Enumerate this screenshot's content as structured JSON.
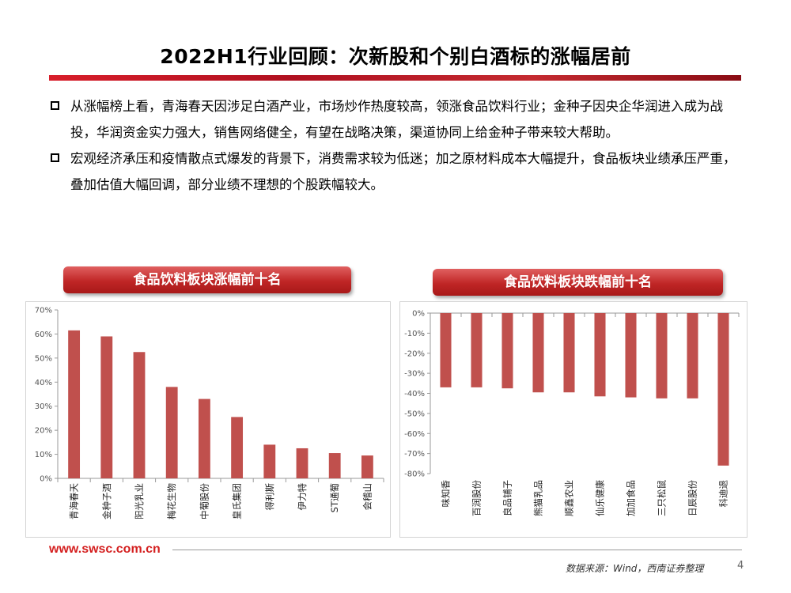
{
  "title": "2022H1行业回顾：次新股和个别白酒标的涨幅居前",
  "bullets": [
    "从涨幅榜上看，青海春天因涉足白酒产业，市场炒作热度较高，领涨食品饮料行业；金种子因央企华润进入成为战投，华润资金实力强大，销售网络健全，有望在战略决策，渠道协同上给金种子带来较大帮助。",
    "宏观经济承压和疫情散点式爆发的背景下，消费需求较为低迷；加之原材料成本大幅提升，食品板块业绩承压严重，叠加估值大幅回调，部分业绩不理想的个股跌幅较大。"
  ],
  "colors": {
    "bar": "#c0504d",
    "accent": "#c0202a",
    "link": "#d42020"
  },
  "chart_data": [
    {
      "type": "bar",
      "title": "食品饮料板块涨幅前十名",
      "categories": [
        "青海春天",
        "金种子酒",
        "阳光乳业",
        "梅花生物",
        "中葡股份",
        "皇氏集团",
        "得利斯",
        "伊力特",
        "ST通葡",
        "会稽山"
      ],
      "values": [
        61.5,
        59,
        52.5,
        38,
        33,
        25.5,
        14,
        12.5,
        10.5,
        9.5
      ],
      "ylim": [
        0,
        70
      ],
      "yticks": [
        "0%",
        "10%",
        "20%",
        "30%",
        "40%",
        "50%",
        "60%",
        "70%"
      ],
      "grid": false
    },
    {
      "type": "bar",
      "title": "食品饮料板块跌幅前十名",
      "categories": [
        "味知香",
        "百润股份",
        "良品铺子",
        "熊猫乳品",
        "顺鑫农业",
        "仙乐健康",
        "加加食品",
        "三只松鼠",
        "日辰股份",
        "科迪退"
      ],
      "values": [
        -37,
        -37,
        -37.5,
        -39.5,
        -39.5,
        -41.5,
        -42,
        -42.5,
        -42.5,
        -76
      ],
      "ylim": [
        -80,
        0
      ],
      "yticks": [
        "0%",
        "-10%",
        "-20%",
        "-30%",
        "-40%",
        "-50%",
        "-60%",
        "-70%",
        "-80%"
      ],
      "grid": false
    }
  ],
  "footer": {
    "website": "www.swsc.com.cn",
    "source": "数据来源：Wind，西南证券整理",
    "page": "4"
  }
}
